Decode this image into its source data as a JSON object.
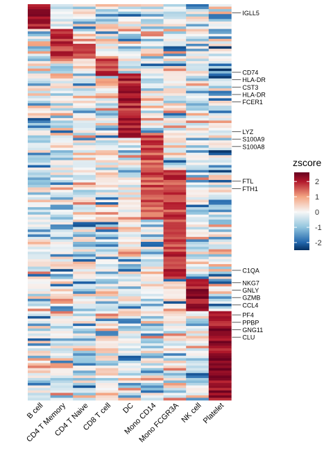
{
  "chart_data": {
    "type": "heatmap",
    "title": "",
    "xlabel": "",
    "ylabel": "",
    "columns": [
      "B cell",
      "CD4 T Memory",
      "CD4 T Naive",
      "CD8 T cell",
      "DC",
      "Mono CD14",
      "Mono FCGR3A",
      "NK cell",
      "Platelet"
    ],
    "n_rows": 160,
    "row_labels": [
      {
        "row": 3,
        "label": "IGLL5"
      },
      {
        "row": 27,
        "label": "CD74"
      },
      {
        "row": 30,
        "label": "HLA-DR"
      },
      {
        "row": 33,
        "label": "CST3"
      },
      {
        "row": 36,
        "label": "HLA-DR"
      },
      {
        "row": 39,
        "label": "FCER1"
      },
      {
        "row": 51,
        "label": "LYZ"
      },
      {
        "row": 54,
        "label": "S100A9"
      },
      {
        "row": 57,
        "label": "S100A8"
      },
      {
        "row": 71,
        "label": "FTL"
      },
      {
        "row": 74,
        "label": "FTH1"
      },
      {
        "row": 107,
        "label": "C1QA"
      },
      {
        "row": 112,
        "label": "NKG7"
      },
      {
        "row": 115,
        "label": "GNLY"
      },
      {
        "row": 118,
        "label": "GZMB"
      },
      {
        "row": 121,
        "label": "CCL4"
      },
      {
        "row": 125,
        "label": "PF4"
      },
      {
        "row": 128,
        "label": "PPBP"
      },
      {
        "row": 131,
        "label": "GNG11"
      },
      {
        "row": 134,
        "label": "CLU"
      }
    ],
    "marker_blocks": [
      {
        "column": "B cell",
        "rows": [
          0,
          10
        ],
        "zscore": 2.6
      },
      {
        "column": "CD4 T Memory",
        "rows": [
          10,
          22
        ],
        "zscore": 2.2
      },
      {
        "column": "CD4 T Naive",
        "rows": [
          16,
          22
        ],
        "zscore": 1.9
      },
      {
        "column": "CD8 T cell",
        "rows": [
          22,
          29
        ],
        "zscore": 2.3
      },
      {
        "column": "DC",
        "rows": [
          28,
          54
        ],
        "zscore": 2.4
      },
      {
        "column": "Mono CD14",
        "rows": [
          53,
          87
        ],
        "zscore": 2.0
      },
      {
        "column": "Mono FCGR3A",
        "rows": [
          67,
          111
        ],
        "zscore": 2.2
      },
      {
        "column": "NK cell",
        "rows": [
          111,
          124
        ],
        "zscore": 2.6
      },
      {
        "column": "Platelet",
        "rows": [
          124,
          160
        ],
        "zscore": 2.6
      }
    ],
    "colorscale": {
      "stops": [
        {
          "value": -2.5,
          "color": "#053061"
        },
        {
          "value": -2,
          "color": "#2166ac"
        },
        {
          "value": -1,
          "color": "#92c5de"
        },
        {
          "value": 0,
          "color": "#f7f7f7"
        },
        {
          "value": 1,
          "color": "#f4a582"
        },
        {
          "value": 2,
          "color": "#b2182b"
        },
        {
          "value": 2.6,
          "color": "#67001f"
        }
      ]
    },
    "legend": {
      "title": "zscore",
      "ticks": [
        2,
        1,
        0,
        -1,
        -2
      ],
      "tick_labels": [
        "2",
        "1",
        "0",
        "-1",
        "-2"
      ],
      "range": [
        -2.5,
        2.6
      ],
      "placement": "right"
    },
    "grid": false
  }
}
